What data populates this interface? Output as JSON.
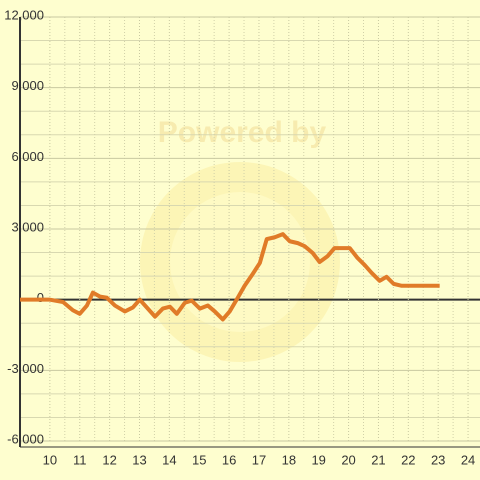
{
  "chart_data": {
    "type": "line",
    "watermark": "Powered by",
    "x": [
      9.0,
      10.0,
      10.44,
      10.77,
      11.0,
      11.24,
      11.44,
      11.68,
      11.91,
      12.18,
      12.51,
      12.78,
      13.01,
      13.28,
      13.52,
      13.78,
      14.02,
      14.25,
      14.52,
      14.75,
      15.02,
      15.29,
      15.52,
      15.79,
      16.02,
      16.29,
      16.52,
      16.79,
      17.03,
      17.26,
      17.53,
      17.8,
      18.03,
      18.3,
      18.53,
      18.8,
      19.03,
      19.3,
      19.53,
      19.8,
      20.04,
      20.3,
      20.54,
      20.77,
      21.04,
      21.27,
      21.51,
      21.78,
      22.01,
      23.05
    ],
    "series": [
      {
        "color": "#e07b28",
        "values": [
          0,
          0,
          -100,
          -450,
          -600,
          -250,
          300,
          130,
          80,
          -250,
          -500,
          -330,
          0,
          -380,
          -720,
          -380,
          -300,
          -600,
          -130,
          -40,
          -380,
          -250,
          -500,
          -840,
          -500,
          80,
          590,
          1090,
          1560,
          2570,
          2650,
          2780,
          2480,
          2400,
          2270,
          1980,
          1600,
          1850,
          2190,
          2190,
          2190,
          1770,
          1470,
          1140,
          800,
          970,
          670,
          590,
          590,
          590
        ]
      }
    ],
    "xlim": [
      9,
      24.4
    ],
    "xticks": [
      10,
      11,
      12,
      13,
      14,
      15,
      16,
      17,
      18,
      19,
      20,
      21,
      22,
      23,
      24
    ],
    "ylim": [
      -6000,
      12000
    ],
    "yticks": [
      {
        "value": -6000,
        "label": "-6,000"
      },
      {
        "value": -3000,
        "label": "-3,000"
      },
      0,
      {
        "value": 3000,
        "label": "3,000"
      },
      {
        "value": 6000,
        "label": "6,000"
      },
      {
        "value": 9000,
        "label": "9,000"
      },
      {
        "value": 12000,
        "label": "12,000"
      }
    ],
    "grid": true
  }
}
